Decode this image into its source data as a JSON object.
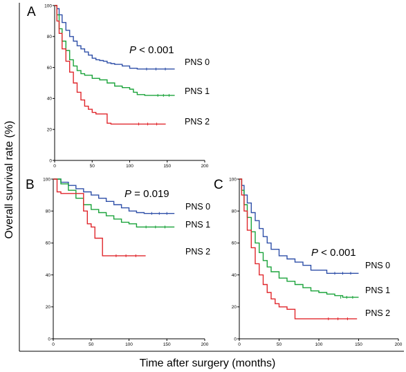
{
  "figure": {
    "ylabel": "Overall survival rate (%)",
    "xlabel": "Time after surgery (months)"
  },
  "colors": {
    "PNS 0": "#2e4fa8",
    "PNS 1": "#1aa33a",
    "PNS 2": "#e0262b"
  },
  "chart_data": [
    {
      "type": "line",
      "panel": "A",
      "title": "",
      "xlabel": "",
      "ylabel": "",
      "annotation": {
        "italic": "P",
        "rest": " < 0.001"
      },
      "xlim": [
        0,
        200
      ],
      "ylim": [
        0,
        100
      ],
      "xticks": [
        0,
        50,
        100,
        150,
        200
      ],
      "yticks": [
        0,
        20,
        40,
        60,
        80,
        100
      ],
      "x_tick_labels": [
        "0",
        "50",
        "100",
        "150",
        "200"
      ],
      "y_tick_labels": [
        "0",
        "20",
        "40",
        "60",
        "80",
        "100"
      ],
      "series": [
        {
          "name": "PNS 0",
          "x": [
            0,
            3,
            6,
            10,
            15,
            20,
            25,
            30,
            35,
            40,
            45,
            50,
            55,
            60,
            65,
            70,
            75,
            80,
            85,
            90,
            100,
            110,
            130,
            160
          ],
          "y": [
            100,
            98,
            94,
            89,
            84,
            80,
            77,
            74,
            72,
            70,
            68,
            66,
            65,
            64.5,
            64,
            63,
            62.5,
            62,
            62,
            61,
            59.5,
            59,
            59,
            59
          ]
        },
        {
          "name": "PNS 1",
          "x": [
            0,
            3,
            6,
            10,
            15,
            20,
            25,
            30,
            35,
            40,
            50,
            60,
            70,
            80,
            90,
            100,
            105,
            110,
            120,
            130,
            150,
            160
          ],
          "y": [
            100,
            94,
            85,
            77,
            71,
            65,
            61,
            58,
            56,
            55,
            53,
            52,
            50,
            48,
            47,
            46,
            44,
            42.5,
            42,
            42,
            42,
            42
          ]
        },
        {
          "name": "PNS 2",
          "x": [
            0,
            3,
            6,
            10,
            15,
            20,
            25,
            30,
            35,
            40,
            45,
            50,
            55,
            60,
            65,
            70,
            75,
            100,
            125,
            148
          ],
          "y": [
            100,
            90,
            82,
            72,
            64,
            57,
            50,
            44,
            39,
            35,
            33,
            31,
            30,
            30,
            30,
            24,
            23.5,
            23.5,
            23.5,
            23.5
          ]
        }
      ]
    },
    {
      "type": "line",
      "panel": "B",
      "title": "",
      "xlabel": "",
      "ylabel": "",
      "annotation": {
        "italic": "P",
        "rest": " = 0.019"
      },
      "xlim": [
        0,
        200
      ],
      "ylim": [
        0,
        100
      ],
      "xticks": [
        0,
        50,
        100,
        150,
        200
      ],
      "yticks": [
        0,
        20,
        40,
        60,
        80,
        100
      ],
      "x_tick_labels": [
        "0",
        "50",
        "100",
        "150",
        "200"
      ],
      "y_tick_labels": [
        "0",
        "20",
        "40",
        "60",
        "80",
        "100"
      ],
      "series": [
        {
          "name": "PNS 0",
          "x": [
            0,
            10,
            20,
            30,
            40,
            50,
            60,
            70,
            80,
            90,
            100,
            110,
            120,
            140,
            160
          ],
          "y": [
            100,
            98,
            96,
            94,
            92,
            90,
            88,
            86,
            84,
            82,
            80,
            79,
            78.5,
            78.5,
            78.5
          ]
        },
        {
          "name": "PNS 1",
          "x": [
            0,
            10,
            20,
            30,
            40,
            50,
            60,
            70,
            80,
            90,
            100,
            110,
            130,
            160
          ],
          "y": [
            100,
            97,
            93,
            88,
            84,
            81,
            79,
            77,
            75,
            73,
            72,
            70,
            70,
            70
          ]
        },
        {
          "name": "PNS 2",
          "x": [
            0,
            5,
            10,
            25,
            35,
            40,
            45,
            50,
            55,
            65,
            70,
            100,
            122
          ],
          "y": [
            100,
            92,
            91,
            91,
            91,
            80,
            72,
            70,
            63,
            52,
            52,
            52,
            52
          ]
        }
      ]
    },
    {
      "type": "line",
      "panel": "C",
      "title": "",
      "xlabel": "",
      "ylabel": "",
      "annotation": {
        "italic": "P",
        "rest": " < 0.001"
      },
      "xlim": [
        0,
        200
      ],
      "ylim": [
        0,
        100
      ],
      "xticks": [
        0,
        50,
        100,
        150,
        200
      ],
      "yticks": [
        0,
        20,
        40,
        60,
        80,
        100
      ],
      "x_tick_labels": [
        "0",
        "50",
        "100",
        "150",
        "200"
      ],
      "y_tick_labels": [
        "0",
        "20",
        "40",
        "60",
        "80",
        "100"
      ],
      "series": [
        {
          "name": "PNS 0",
          "x": [
            0,
            3,
            6,
            10,
            15,
            20,
            25,
            30,
            35,
            40,
            50,
            60,
            70,
            80,
            90,
            100,
            110,
            125,
            150
          ],
          "y": [
            100,
            96,
            90,
            85,
            79,
            74,
            69,
            64,
            60,
            56,
            52,
            50,
            48,
            46,
            43,
            43,
            41,
            41,
            41
          ]
        },
        {
          "name": "PNS 1",
          "x": [
            0,
            3,
            6,
            10,
            15,
            20,
            25,
            30,
            35,
            40,
            50,
            60,
            70,
            80,
            90,
            100,
            110,
            120,
            130,
            150
          ],
          "y": [
            100,
            93,
            84,
            76,
            67,
            60,
            54,
            49,
            45,
            42,
            38,
            36,
            34,
            32,
            30,
            29,
            28,
            27,
            26,
            26
          ]
        },
        {
          "name": "PNS 2",
          "x": [
            0,
            3,
            6,
            10,
            15,
            20,
            25,
            30,
            35,
            40,
            45,
            50,
            60,
            70,
            80,
            100,
            125,
            148
          ],
          "y": [
            100,
            90,
            80,
            68,
            57,
            47,
            40,
            34,
            29,
            25,
            22,
            20,
            18.5,
            12.5,
            12.5,
            12.5,
            12.5,
            12.5
          ]
        }
      ]
    }
  ]
}
